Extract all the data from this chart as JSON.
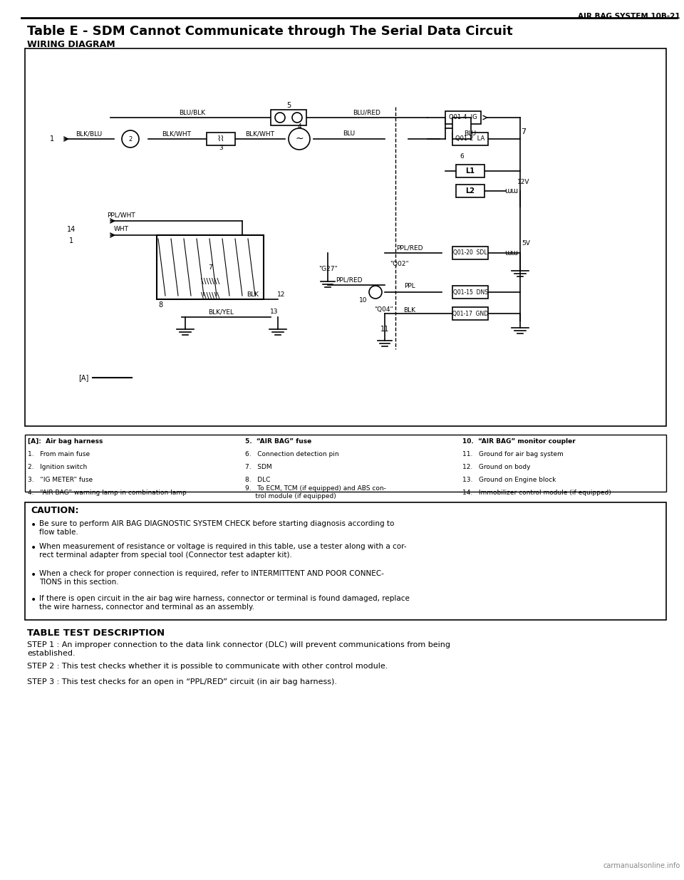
{
  "page_header": "AIR BAG SYSTEM 10B-21",
  "title": "Table E - SDM Cannot Communicate through The Serial Data Circuit",
  "wiring_label": "WIRING DIAGRAM",
  "table_headers": [
    "[A]:  Air bag harness",
    "5.  “AIR BAG” fuse",
    "10.  “AIR BAG” monitor coupler"
  ],
  "table_rows": [
    [
      "1.   From main fuse",
      "6.   Connection detection pin",
      "11.   Ground for air bag system"
    ],
    [
      "2.   Ignition switch",
      "7.   SDM",
      "12.   Ground on body"
    ],
    [
      "3.   “IG METER” fuse",
      "8.   DLC",
      "13.   Ground on Engine block"
    ],
    [
      "4.   “AIR BAG” warning lamp in combination lamp",
      "9.   To ECM, TCM (if equipped) and ABS con-\n     trol module (if equipped)",
      "14.   Immobilizer control module (if equipped)"
    ]
  ],
  "caution_title": "CAUTION:",
  "caution_bullets": [
    "Be sure to perform AIR BAG DIAGNOSTIC SYSTEM CHECK before starting diagnosis according to\nflow table.",
    "When measurement of resistance or voltage is required in this table, use a tester along with a cor-\nrect terminal adapter from special tool (Connector test adapter kit).",
    "When a check for proper connection is required, refer to INTERMITTENT AND POOR CONNEC-\nTIONS in this section.",
    "If there is open circuit in the air bag wire harness, connector or terminal is found damaged, replace\nthe wire harness, connector and terminal as an assembly."
  ],
  "section_title": "TABLE TEST DESCRIPTION",
  "step_texts": [
    "STEP 1 : An improper connection to the data link connector (DLC) will prevent communications from being\nestablished.",
    "STEP 2 : This test checks whether it is possible to communicate with other control module.",
    "STEP 3 : This test checks for an open in “PPL/RED” circuit (in air bag harness)."
  ],
  "watermark": "carmanualsonline.info",
  "bg_color": "#ffffff",
  "text_color": "#000000",
  "diagram_border_color": "#000000"
}
